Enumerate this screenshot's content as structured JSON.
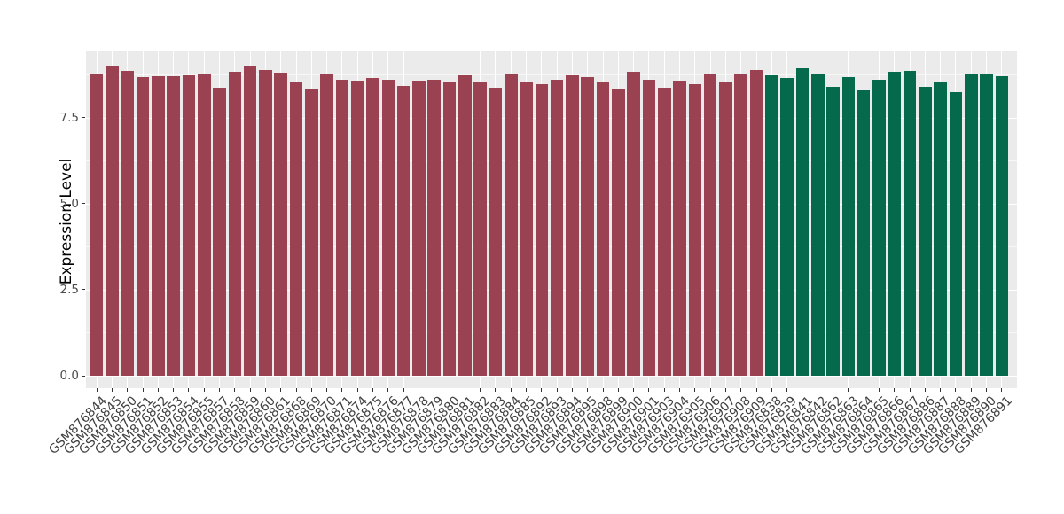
{
  "chart_data": {
    "type": "bar",
    "title": "",
    "xlabel": "",
    "ylabel": "Expression Level",
    "ylim": [
      0,
      9.4
    ],
    "grid": true,
    "legend_position": "none",
    "panel_background": "#EBEBEB",
    "gridline_color": "#FFFFFF",
    "y_ticks": [
      {
        "label": "0.0",
        "value": 0
      },
      {
        "label": "2.5",
        "value": 2.5
      },
      {
        "label": "5.0",
        "value": 5
      },
      {
        "label": "7.5",
        "value": 7.5
      }
    ],
    "y_minor_ticks": [
      1.25,
      3.75,
      6.25,
      8.75
    ],
    "colors": {
      "red": "#9A4152",
      "green": "#046A4B"
    },
    "categories": [
      "GSM876844",
      "GSM876845",
      "GSM876850",
      "GSM876851",
      "GSM876852",
      "GSM876853",
      "GSM876854",
      "GSM876855",
      "GSM876857",
      "GSM876858",
      "GSM876859",
      "GSM876860",
      "GSM876861",
      "GSM876868",
      "GSM876869",
      "GSM876870",
      "GSM876871",
      "GSM876874",
      "GSM876875",
      "GSM876876",
      "GSM876877",
      "GSM876878",
      "GSM876879",
      "GSM876880",
      "GSM876881",
      "GSM876882",
      "GSM876883",
      "GSM876884",
      "GSM876885",
      "GSM876892",
      "GSM876893",
      "GSM876894",
      "GSM876895",
      "GSM876898",
      "GSM876899",
      "GSM876900",
      "GSM876901",
      "GSM876903",
      "GSM876904",
      "GSM876905",
      "GSM876906",
      "GSM876907",
      "GSM876908",
      "GSM876909",
      "GSM876838",
      "GSM876839",
      "GSM876841",
      "GSM876842",
      "GSM876862",
      "GSM876863",
      "GSM876864",
      "GSM876865",
      "GSM876866",
      "GSM876867",
      "GSM876886",
      "GSM876887",
      "GSM876888",
      "GSM876889",
      "GSM876890",
      "GSM876891"
    ],
    "values": [
      8.77,
      9.01,
      8.86,
      8.67,
      8.69,
      8.7,
      8.72,
      8.74,
      8.37,
      8.82,
      9.01,
      8.87,
      8.81,
      8.53,
      8.33,
      8.77,
      8.61,
      8.57,
      8.64,
      8.59,
      8.41,
      8.56,
      8.6,
      8.54,
      8.73,
      8.55,
      8.37,
      8.78,
      8.51,
      8.47,
      8.61,
      8.73,
      8.67,
      8.55,
      8.33,
      8.82,
      8.6,
      8.37,
      8.58,
      8.47,
      8.75,
      8.52,
      8.75,
      8.88,
      8.72,
      8.65,
      8.93,
      8.78,
      8.38,
      8.67,
      8.29,
      8.59,
      8.83,
      8.85,
      8.38,
      8.54,
      8.23,
      8.74,
      8.78,
      8.69
    ],
    "groups": [
      "red",
      "red",
      "red",
      "red",
      "red",
      "red",
      "red",
      "red",
      "red",
      "red",
      "red",
      "red",
      "red",
      "red",
      "red",
      "red",
      "red",
      "red",
      "red",
      "red",
      "red",
      "red",
      "red",
      "red",
      "red",
      "red",
      "red",
      "red",
      "red",
      "red",
      "red",
      "red",
      "red",
      "red",
      "red",
      "red",
      "red",
      "red",
      "red",
      "red",
      "red",
      "red",
      "red",
      "red",
      "green",
      "green",
      "green",
      "green",
      "green",
      "green",
      "green",
      "green",
      "green",
      "green",
      "green",
      "green",
      "green",
      "green",
      "green",
      "green"
    ]
  }
}
